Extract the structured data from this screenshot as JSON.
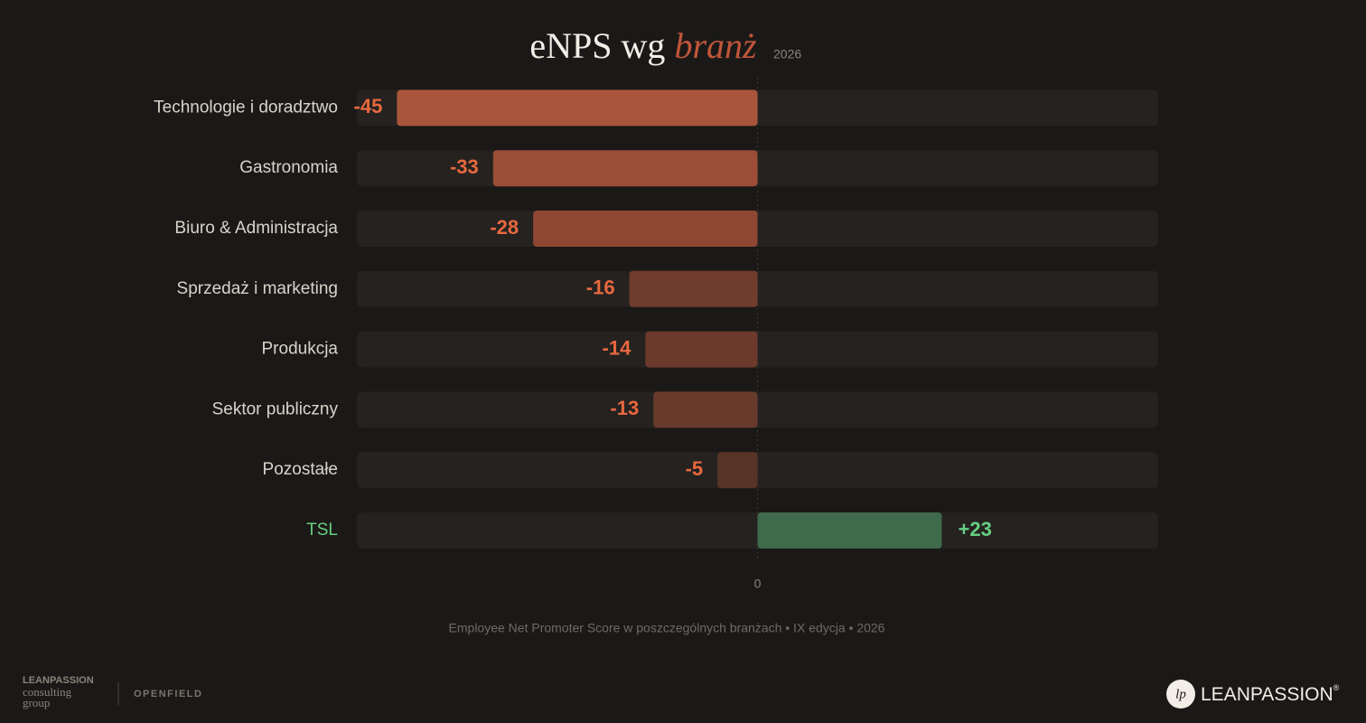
{
  "chart_data": {
    "type": "bar",
    "orientation": "horizontal",
    "title": "eNPS wg",
    "title_emphasis": "branż",
    "title_year": "2026",
    "categories": [
      "Technologie i doradztwo",
      "Gastronomia",
      "Biuro & Administracja",
      "Sprzedaż i marketing",
      "Produkcja",
      "Sektor publiczny",
      "Pozostałe",
      "TSL"
    ],
    "values": [
      -45,
      -33,
      -28,
      -16,
      -14,
      -13,
      -5,
      23
    ],
    "value_labels": [
      "-45",
      "-33",
      "-28",
      "-16",
      "-14",
      "-13",
      "-5",
      "+23"
    ],
    "colors": [
      "#a9553b",
      "#9b4d37",
      "#8e4733",
      "#703c2d",
      "#6b3a2c",
      "#673a2c",
      "#583328",
      "#3f6a4b"
    ],
    "negative_label_color": "#e8683f",
    "positive_label_color": "#66cf82",
    "track_color": "#252220",
    "xlim": [
      -50,
      50
    ],
    "xticks": [
      0
    ],
    "caption": "Employee Net Promoter Score w poszczególnych branżach • IX edycja • 2026"
  },
  "footer": {
    "left_logo": [
      "LEANPASSION",
      "consulting",
      "group"
    ],
    "partner_logo": "OPENFIELD",
    "right_logo": {
      "icon": "lp",
      "text": "LEANPASSION",
      "mark": "®"
    }
  }
}
